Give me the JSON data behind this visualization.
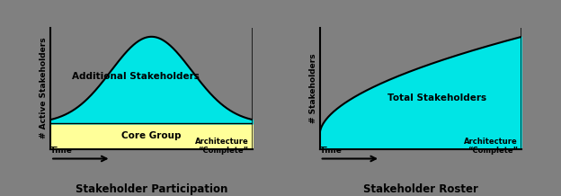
{
  "background_color": "#808080",
  "fig_width": 6.24,
  "fig_height": 2.18,
  "dpi": 100,
  "left_title": "Stakeholder Participation",
  "right_title": "Stakeholder Roster",
  "left_ylabel": "# Active Stakeholders",
  "right_ylabel": "# Stakeholders",
  "xlabel_left": "Time",
  "xlabel_right": "Time",
  "arch_label": "Architecture\n“Complete”",
  "additional_label": "Additional Stakeholders",
  "core_label": "Core Group",
  "total_label": "Total Stakeholders",
  "cyan_color": "#00E5E5",
  "yellow_color": "#FFFF99",
  "axis_bg": "#808080",
  "title_fontsize": 8.5,
  "label_fontsize": 6.5,
  "annotation_fontsize": 7.5,
  "arch_fontsize": 6.0
}
